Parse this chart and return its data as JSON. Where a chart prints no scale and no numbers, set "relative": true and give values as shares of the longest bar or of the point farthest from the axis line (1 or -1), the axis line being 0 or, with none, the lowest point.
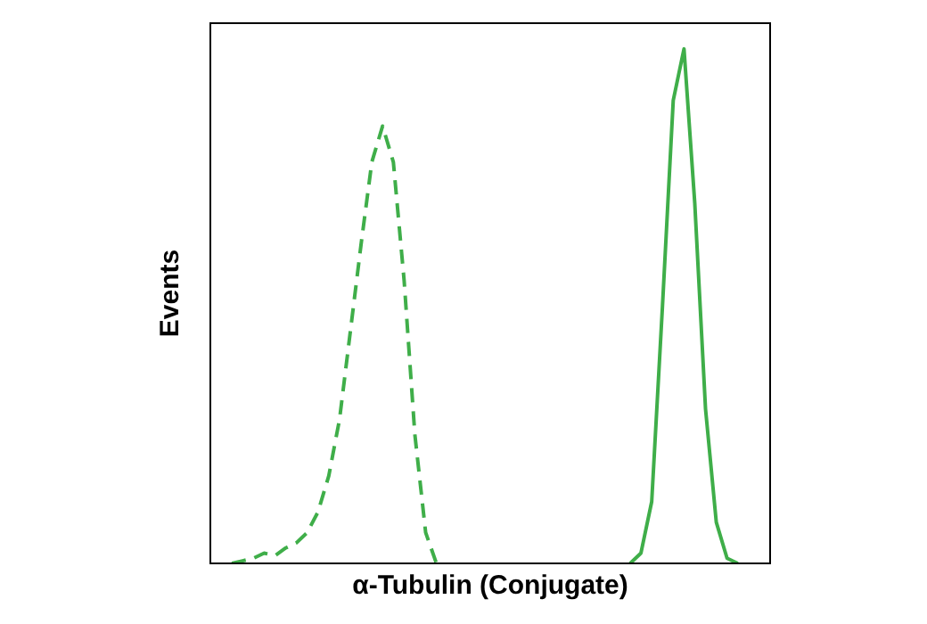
{
  "chart_data": {
    "type": "line",
    "relative": true,
    "ylabel": "Events",
    "xlabel": "α-Tubulin (Conjugate)",
    "legend": false,
    "grid": false,
    "marker": "none",
    "categories": [
      null,
      null,
      null,
      null,
      null,
      null,
      null,
      null,
      null,
      null,
      null,
      null,
      null,
      null,
      null,
      null,
      null,
      null,
      null,
      null,
      null,
      null,
      null,
      null,
      null,
      null,
      null,
      null,
      null,
      null,
      null,
      null,
      null,
      null,
      null,
      null,
      null,
      null,
      null,
      null,
      null,
      null,
      null,
      null,
      null,
      null,
      null,
      null,
      null,
      null,
      null,
      null,
      null
    ],
    "series": [
      {
        "color": "#3fae49",
        "line_style": "dashed",
        "values": [
          null,
          null,
          0,
          0.005,
          0.01,
          0.02,
          0.015,
          0.03,
          0.04,
          0.06,
          0.1,
          0.17,
          0.28,
          0.45,
          0.62,
          0.78,
          0.85,
          0.78,
          0.55,
          0.25,
          0.06,
          0,
          null,
          null,
          null,
          null,
          null,
          null,
          null,
          null,
          null,
          null,
          null,
          null,
          null,
          null,
          null,
          null,
          null,
          null,
          null,
          null,
          null,
          null,
          null,
          null,
          null,
          null,
          null,
          null,
          null,
          null,
          null
        ]
      },
      {
        "color": "#3fae49",
        "line_style": "solid",
        "values": [
          null,
          null,
          null,
          null,
          null,
          null,
          null,
          null,
          null,
          null,
          null,
          null,
          null,
          null,
          null,
          null,
          null,
          null,
          null,
          null,
          null,
          null,
          null,
          null,
          null,
          null,
          null,
          null,
          null,
          null,
          null,
          null,
          null,
          null,
          null,
          null,
          null,
          null,
          null,
          0,
          0.02,
          0.12,
          0.5,
          0.9,
          1,
          0.7,
          0.3,
          0.08,
          0.01,
          0,
          null,
          null,
          null
        ]
      }
    ]
  }
}
